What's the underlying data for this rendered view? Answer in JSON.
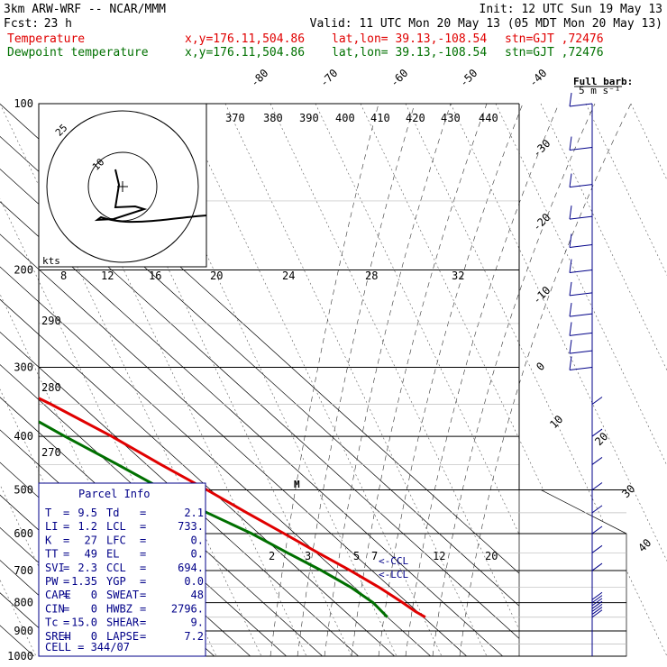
{
  "header": {
    "model": "3km ARW-WRF -- NCAR/MMM",
    "init": "Init: 12 UTC Sun 19 May 13",
    "fcst_label": "Fcst:",
    "fcst_value": "23 h",
    "valid": "Valid: 11 UTC Mon 20 May 13 (05 MDT Mon 20 May 13)",
    "temp_label": "Temperature",
    "dew_label": "Dewpoint temperature",
    "xy": "x,y=176.11,504.86",
    "latlon": "lat,lon= 39.13,-108.54",
    "stn": "stn=GJT ,72476"
  },
  "full_barb": {
    "line1": "Full barb:",
    "line2": "5 m s⁻¹"
  },
  "parcel_info": {
    "title": "Parcel Info",
    "rows": [
      [
        "T",
        "=",
        "9.5",
        "Td",
        "=",
        "2.1"
      ],
      [
        "LI",
        "=",
        "1.2",
        "LCL",
        "=",
        "733."
      ],
      [
        "K",
        "=",
        "27",
        "LFC",
        "=",
        "0."
      ],
      [
        "TT",
        "=",
        "49",
        "EL",
        "=",
        "0."
      ],
      [
        "SVI",
        "=",
        "2.3",
        "CCL",
        "=",
        "694."
      ],
      [
        "PW",
        "=",
        "1.35",
        "YGP",
        "=",
        "0.0"
      ],
      [
        "CAPE",
        "=",
        "0",
        "SWEAT",
        "=",
        "48"
      ],
      [
        "CIN",
        "=",
        "0",
        "HWBZ",
        "=",
        "2796."
      ],
      [
        "Tc",
        "=",
        "15.0",
        "SHEAR",
        "=",
        "9."
      ],
      [
        "SREH",
        "=",
        "0",
        "LAPSE",
        "=",
        "7.2"
      ]
    ],
    "cell": "CELL = 344/07"
  },
  "markers": {
    "ccl": "<-CCL",
    "lcl": "<-LCL",
    "m": "M"
  },
  "hodograph": {
    "unit": "kts",
    "ring_labels": [
      "25",
      "10"
    ],
    "axis_ticks": [
      "8",
      "12",
      "16",
      "20",
      "24",
      "28",
      "32"
    ]
  },
  "chart_data": {
    "type": "line",
    "title": "",
    "y_axis": {
      "label": "",
      "scale": "log-pressure",
      "unit": "hPa",
      "ticks": [
        100,
        200,
        300,
        400,
        500,
        600,
        700,
        800,
        900,
        1000
      ],
      "ylim": [
        1000,
        100
      ]
    },
    "isotherm_labels": [
      "-80",
      "-70",
      "-60",
      "-50",
      "-40",
      "-30",
      "-20",
      "-10",
      "0",
      "10",
      "20",
      "30",
      "40"
    ],
    "dry_adiabat_labels": [
      "370",
      "380",
      "390",
      "400",
      "410",
      "420",
      "430",
      "440",
      "290",
      "280",
      "270"
    ],
    "mixing_ratio_labels": [
      "2",
      "3",
      "5",
      "7",
      "12",
      "20"
    ],
    "series": [
      {
        "name": "Temperature",
        "color": "#e00000",
        "points": [
          [
            850,
            10.5
          ],
          [
            830,
            9.5
          ],
          [
            800,
            8.7
          ],
          [
            780,
            8.0
          ],
          [
            750,
            6.8
          ],
          [
            700,
            4.0
          ],
          [
            650,
            0.5
          ],
          [
            600,
            -3.0
          ],
          [
            550,
            -7.0
          ],
          [
            500,
            -11.0
          ],
          [
            450,
            -16.0
          ],
          [
            400,
            -21.0
          ],
          [
            350,
            -28.0
          ],
          [
            320,
            -33.5
          ],
          [
            300,
            -37.5
          ],
          [
            280,
            -39.5
          ],
          [
            250,
            -42.0
          ],
          [
            220,
            -44.5
          ],
          [
            200,
            -47.5
          ],
          [
            180,
            -51.0
          ],
          [
            160,
            -54.5
          ],
          [
            140,
            -58.0
          ],
          [
            120,
            -62.0
          ],
          [
            100,
            -66.0
          ]
        ]
      },
      {
        "name": "Dewpoint temperature",
        "color": "#007000",
        "points": [
          [
            850,
            0.0
          ],
          [
            800,
            0.5
          ],
          [
            750,
            -1.0
          ],
          [
            700,
            -4.0
          ],
          [
            650,
            -8.0
          ],
          [
            600,
            -12.0
          ],
          [
            550,
            -18.0
          ],
          [
            500,
            -23.0
          ],
          [
            450,
            -28.0
          ],
          [
            400,
            -34.0
          ],
          [
            350,
            -40.0
          ],
          [
            320,
            -45.0
          ],
          [
            300,
            -51.0
          ],
          [
            280,
            -57.0
          ],
          [
            260,
            -64.0
          ],
          [
            240,
            -72.0
          ],
          [
            220,
            -79.0
          ],
          [
            200,
            -83.0
          ],
          [
            180,
            -87.0
          ],
          [
            160,
            -88.0
          ],
          [
            140,
            -88.5
          ],
          [
            120,
            -89.5
          ],
          [
            100,
            -90.5
          ]
        ]
      }
    ],
    "wind_barbs_hpa": [
      790,
      800,
      810,
      820,
      830,
      840,
      850,
      700,
      650,
      600,
      550,
      500,
      450,
      400,
      350,
      300,
      280,
      260,
      240,
      220,
      200,
      180,
      160,
      140,
      120,
      100
    ]
  }
}
